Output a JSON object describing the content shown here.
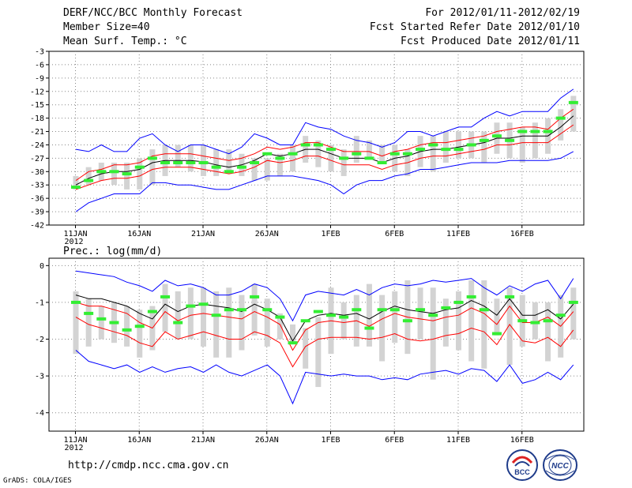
{
  "header": {
    "title": "DERF/NCC/BCC Monthly Forecast",
    "member": "Member Size=40",
    "variable": "Mean Surf. Temp.: °C",
    "for_range": "For 2012/01/11-2012/02/19",
    "started": "Fcst Started Refer Date 2012/01/10",
    "produced": "Fcst Produced Date 2012/01/11"
  },
  "footer": {
    "url": "http://cmdp.ncc.cma.gov.cn",
    "grads": "GrADS: COLA/IGES",
    "logo_bcc": "BCC",
    "logo_ncc": "NCC"
  },
  "chart_data": [
    {
      "type": "box",
      "title": "Mean Surf. Temp.: °C",
      "x_ticks": [
        "11JAN\n2012",
        "16JAN",
        "21JAN",
        "26JAN",
        "1FEB",
        "6FEB",
        "11FEB",
        "16FEB"
      ],
      "ylim": [
        -42,
        -3
      ],
      "y_ticks": [
        -3,
        -6,
        -9,
        -12,
        -15,
        -18,
        -21,
        -24,
        -27,
        -30,
        -33,
        -36,
        -39,
        -42
      ],
      "days": 40,
      "colors": {
        "box": "#d3d3d3",
        "median": "#33ee33",
        "mean": "#000000",
        "spread": "#ff0000",
        "envelope": "#0000ff"
      },
      "box_low": [
        -34,
        -33,
        -32,
        -33,
        -34,
        -34,
        -33,
        -31,
        -29,
        -30,
        -31,
        -31,
        -30,
        -31,
        -32,
        -32,
        -31,
        -30,
        -28,
        -29,
        -30,
        -31,
        -28,
        -27,
        -28,
        -30,
        -31,
        -29,
        -30,
        -28,
        -27,
        -27,
        -28,
        -26,
        -27,
        -28,
        -27,
        -26,
        -23,
        -21
      ],
      "box_high": [
        -31,
        -29,
        -28,
        -28,
        -28,
        -27,
        -25,
        -24,
        -24,
        -24,
        -24,
        -25,
        -25,
        -26,
        -27,
        -27,
        -26,
        -24,
        -22,
        -23,
        -24,
        -25,
        -22,
        -23,
        -24,
        -24,
        -25,
        -22,
        -22,
        -21,
        -21,
        -21,
        -21,
        -19,
        -19,
        -20,
        -19,
        -18,
        -16,
        -13
      ],
      "median": [
        -33.5,
        -32,
        -30,
        -30,
        -30.5,
        -29,
        -27,
        -28,
        -28,
        -28,
        -28,
        -29,
        -30,
        -29,
        -28,
        -26,
        -27,
        -26,
        -24,
        -24,
        -25,
        -27,
        -26,
        -27,
        -28,
        -26,
        -26,
        -25,
        -24,
        -25,
        -25,
        -24,
        -23,
        -22,
        -23,
        -21,
        -21,
        -21,
        -18,
        -14.5
      ],
      "mean": [
        -33,
        -31.5,
        -30.5,
        -30,
        -30,
        -29.5,
        -28,
        -27.5,
        -27.5,
        -27.5,
        -27.8,
        -28.5,
        -29,
        -28.5,
        -27.5,
        -26,
        -26.5,
        -26,
        -25,
        -25,
        -26,
        -27,
        -27,
        -27,
        -28,
        -27,
        -26.5,
        -25.5,
        -25,
        -25,
        -24.5,
        -24,
        -23.5,
        -22.5,
        -22.5,
        -22,
        -22,
        -22,
        -20,
        -17.5
      ],
      "spread_upper": [
        -32,
        -30,
        -29.5,
        -28.5,
        -28.5,
        -28,
        -26.5,
        -26,
        -26,
        -26,
        -26.5,
        -27,
        -27.5,
        -27,
        -26,
        -24.5,
        -25,
        -24.5,
        -23.5,
        -23.5,
        -24.5,
        -25.5,
        -25.5,
        -25.5,
        -26.5,
        -25.5,
        -25,
        -24,
        -23.5,
        -23.5,
        -23,
        -22.5,
        -22,
        -21,
        -20.5,
        -20,
        -20,
        -20.5,
        -18,
        -16
      ],
      "spread_lower": [
        -34,
        -33,
        -32,
        -31.5,
        -31.5,
        -31,
        -29.5,
        -29,
        -29,
        -29,
        -29.5,
        -30,
        -30.5,
        -30,
        -29,
        -27.5,
        -28,
        -27.5,
        -26.5,
        -26.5,
        -27.5,
        -28.5,
        -28.5,
        -28.5,
        -29.5,
        -28.5,
        -28,
        -27,
        -26.5,
        -26.5,
        -26,
        -25.5,
        -25,
        -24,
        -24,
        -23.5,
        -23.5,
        -23.5,
        -21.5,
        -19.5
      ],
      "envelope_upper": [
        -25,
        -25.5,
        -24,
        -25.5,
        -25.5,
        -22.5,
        -21.5,
        -24,
        -25.5,
        -24,
        -24,
        -25,
        -26,
        -24.5,
        -21.5,
        -22.5,
        -24,
        -24,
        -19,
        -20,
        -20.5,
        -22,
        -23,
        -23.5,
        -24.5,
        -23.5,
        -21,
        -21,
        -22,
        -21,
        -20,
        -20,
        -18,
        -16.5,
        -17.5,
        -16.5,
        -16.5,
        -16.5,
        -13.5,
        -11.5
      ],
      "envelope_lower": [
        -39,
        -37,
        -36,
        -35,
        -35,
        -35,
        -32.5,
        -32.5,
        -33,
        -33,
        -33.5,
        -34,
        -34,
        -33,
        -32,
        -31,
        -31,
        -31,
        -31.5,
        -32,
        -33,
        -35,
        -33,
        -32,
        -32,
        -31,
        -30.5,
        -29.5,
        -29.5,
        -29,
        -28.5,
        -28,
        -28,
        -28,
        -27.5,
        -27.5,
        -27.5,
        -27.5,
        -27,
        -25.5
      ]
    },
    {
      "type": "box",
      "title": "Prec.: log(mm/d)",
      "x_ticks": [
        "11JAN\n2012",
        "16JAN",
        "21JAN",
        "26JAN",
        "1FEB",
        "6FEB",
        "11FEB",
        "16FEB"
      ],
      "ylim": [
        -4.5,
        0.2
      ],
      "y_ticks": [
        0,
        -1,
        -2,
        -3,
        -4
      ],
      "days": 40,
      "colors": {
        "box": "#d3d3d3",
        "median": "#33ee33",
        "mean": "#000000",
        "spread": "#ff0000",
        "envelope": "#0000ff"
      },
      "box_low": [
        -2.4,
        -2.2,
        -2.0,
        -2.1,
        -2.2,
        -2.5,
        -2.3,
        -1.8,
        -2.0,
        -2.0,
        -2.2,
        -2.5,
        -2.5,
        -2.3,
        -1.9,
        -2.2,
        -2.0,
        -2.1,
        -2.8,
        -3.3,
        -2.4,
        -2.0,
        -2.2,
        -2.2,
        -2.6,
        -2.1,
        -2.4,
        -2.0,
        -3.1,
        -2.2,
        -2.3,
        -2.6,
        -2.8,
        -1.9,
        -2.7,
        -2.2,
        -2.0,
        -2.6,
        -2.5,
        -2.0
      ],
      "box_high": [
        -0.7,
        -0.9,
        -1.1,
        -1.0,
        -1.1,
        -1.2,
        -1.1,
        -0.5,
        -0.7,
        -0.6,
        -0.6,
        -0.7,
        -0.6,
        -0.8,
        -0.5,
        -0.9,
        -1.3,
        -1.6,
        -1.7,
        -1.4,
        -0.6,
        -1.0,
        -0.8,
        -0.5,
        -0.8,
        -0.7,
        -0.4,
        -0.6,
        -0.6,
        -0.9,
        -0.7,
        -0.4,
        -0.4,
        -0.9,
        -0.6,
        -0.8,
        -1.0,
        -1.0,
        -0.8,
        -0.6
      ],
      "median": [
        -1.0,
        -1.3,
        -1.45,
        -1.55,
        -1.75,
        -1.65,
        -1.25,
        -0.85,
        -1.55,
        -1.1,
        -1.05,
        -1.35,
        -1.2,
        -1.2,
        -0.85,
        -1.2,
        -1.4,
        -2.1,
        -1.5,
        -1.25,
        -1.35,
        -1.4,
        -1.2,
        -1.7,
        -1.2,
        -1.2,
        -1.5,
        -1.2,
        -1.35,
        -1.15,
        -1.0,
        -0.85,
        -1.2,
        -1.85,
        -0.85,
        -1.5,
        -1.55,
        -1.5,
        -1.35,
        -1.0
      ],
      "mean": [
        -0.8,
        -0.9,
        -0.9,
        -1.0,
        -1.1,
        -1.3,
        -1.45,
        -1.05,
        -1.25,
        -1.1,
        -1.05,
        -1.1,
        -1.15,
        -1.25,
        -1.05,
        -1.2,
        -1.4,
        -2.05,
        -1.5,
        -1.35,
        -1.3,
        -1.35,
        -1.3,
        -1.45,
        -1.25,
        -1.1,
        -1.2,
        -1.25,
        -1.3,
        -1.2,
        -1.15,
        -0.95,
        -1.1,
        -1.35,
        -0.9,
        -1.35,
        -1.35,
        -1.2,
        -1.45,
        -1.05
      ],
      "spread_upper": [
        -1.0,
        -1.1,
        -1.1,
        -1.2,
        -1.3,
        -1.55,
        -1.7,
        -1.25,
        -1.5,
        -1.35,
        -1.3,
        -1.35,
        -1.4,
        -1.45,
        -1.25,
        -1.4,
        -1.6,
        -2.3,
        -1.75,
        -1.55,
        -1.5,
        -1.55,
        -1.5,
        -1.65,
        -1.45,
        -1.3,
        -1.4,
        -1.45,
        -1.5,
        -1.4,
        -1.35,
        -1.15,
        -1.3,
        -1.6,
        -1.1,
        -1.55,
        -1.55,
        -1.4,
        -1.65,
        -1.25
      ],
      "spread_lower": [
        -1.4,
        -1.6,
        -1.7,
        -1.8,
        -1.9,
        -2.1,
        -2.2,
        -1.8,
        -2.0,
        -1.9,
        -1.8,
        -1.9,
        -2.0,
        -2.0,
        -1.8,
        -1.9,
        -2.1,
        -2.75,
        -2.2,
        -2.0,
        -1.95,
        -1.95,
        -1.95,
        -2.0,
        -1.95,
        -1.85,
        -2.0,
        -2.05,
        -2.0,
        -1.9,
        -1.85,
        -1.7,
        -1.8,
        -2.15,
        -1.6,
        -2.05,
        -2.1,
        -1.95,
        -2.2,
        -1.75
      ],
      "envelope_upper": [
        -0.15,
        -0.2,
        -0.25,
        -0.3,
        -0.45,
        -0.55,
        -0.7,
        -0.4,
        -0.55,
        -0.5,
        -0.6,
        -0.8,
        -0.8,
        -0.7,
        -0.5,
        -0.6,
        -0.9,
        -1.5,
        -0.8,
        -0.7,
        -0.75,
        -0.8,
        -0.65,
        -0.8,
        -0.6,
        -0.5,
        -0.55,
        -0.5,
        -0.4,
        -0.45,
        -0.4,
        -0.35,
        -0.6,
        -0.8,
        -0.55,
        -0.7,
        -0.5,
        -0.4,
        -0.9,
        -0.35
      ],
      "envelope_lower": [
        -2.3,
        -2.6,
        -2.7,
        -2.8,
        -2.7,
        -2.9,
        -2.75,
        -2.9,
        -2.8,
        -2.75,
        -2.9,
        -2.7,
        -2.9,
        -3.0,
        -2.85,
        -2.7,
        -3.0,
        -3.75,
        -2.9,
        -2.95,
        -3.0,
        -2.95,
        -3.0,
        -3.0,
        -3.1,
        -3.05,
        -3.1,
        -2.95,
        -2.9,
        -2.85,
        -2.95,
        -2.8,
        -2.85,
        -3.15,
        -2.7,
        -3.2,
        -3.1,
        -2.9,
        -3.1,
        -2.7
      ]
    }
  ]
}
